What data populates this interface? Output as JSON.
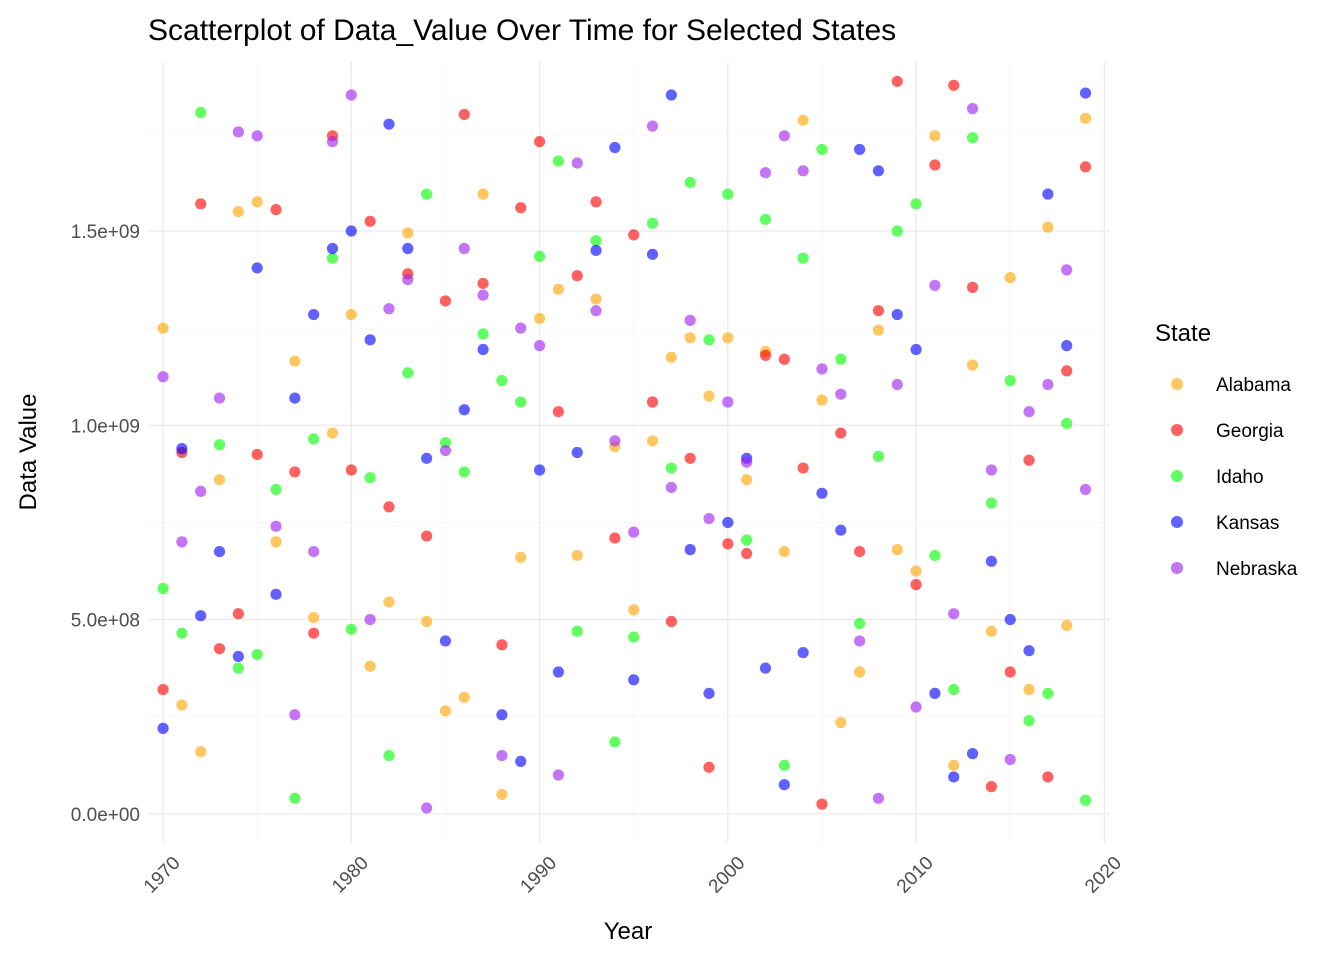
{
  "chart_data": {
    "type": "scatter",
    "title": "Scatterplot of Data_Value Over Time for Selected States",
    "xlabel": "Year",
    "ylabel": "Data Value",
    "xlim": [
      1969.2,
      2020.3
    ],
    "ylim": [
      -75000000,
      1935000000
    ],
    "x_ticks": [
      1970,
      1980,
      1990,
      2000,
      2010,
      2020
    ],
    "x_tick_labels": [
      "1970",
      "1980",
      "1990",
      "2000",
      "2010",
      "2020"
    ],
    "y_ticks": [
      0,
      500000000,
      1000000000,
      1500000000
    ],
    "y_tick_labels": [
      "0.0e+00",
      "5.0e+08",
      "1.0e+09",
      "1.5e+09"
    ],
    "grid": true,
    "legend_title": "State",
    "legend_position": "right",
    "series": [
      {
        "name": "Alabama",
        "color": "#FFA500",
        "points": [
          [
            1970,
            1250000000
          ],
          [
            1971,
            280000000
          ],
          [
            1972,
            160000000
          ],
          [
            1973,
            860000000
          ],
          [
            1974,
            1550000000
          ],
          [
            1975,
            1575000000
          ],
          [
            1976,
            700000000
          ],
          [
            1977,
            1165000000
          ],
          [
            1978,
            505000000
          ],
          [
            1979,
            980000000
          ],
          [
            1980,
            1285000000
          ],
          [
            1981,
            380000000
          ],
          [
            1982,
            545000000
          ],
          [
            1983,
            1495000000
          ],
          [
            1984,
            495000000
          ],
          [
            1985,
            265000000
          ],
          [
            1986,
            300000000
          ],
          [
            1987,
            1595000000
          ],
          [
            1988,
            50000000
          ],
          [
            1989,
            660000000
          ],
          [
            1990,
            1275000000
          ],
          [
            1991,
            1350000000
          ],
          [
            1992,
            665000000
          ],
          [
            1993,
            1325000000
          ],
          [
            1994,
            945000000
          ],
          [
            1995,
            525000000
          ],
          [
            1996,
            960000000
          ],
          [
            1997,
            1175000000
          ],
          [
            1998,
            1225000000
          ],
          [
            1999,
            1075000000
          ],
          [
            2000,
            1225000000
          ],
          [
            2001,
            860000000
          ],
          [
            2002,
            1190000000
          ],
          [
            2003,
            675000000
          ],
          [
            2004,
            1785000000
          ],
          [
            2005,
            1065000000
          ],
          [
            2006,
            235000000
          ],
          [
            2007,
            365000000
          ],
          [
            2008,
            1245000000
          ],
          [
            2009,
            680000000
          ],
          [
            2010,
            625000000
          ],
          [
            2011,
            1745000000
          ],
          [
            2012,
            125000000
          ],
          [
            2013,
            1155000000
          ],
          [
            2014,
            470000000
          ],
          [
            2015,
            1380000000
          ],
          [
            2016,
            320000000
          ],
          [
            2017,
            1510000000
          ],
          [
            2018,
            485000000
          ],
          [
            2019,
            1790000000
          ]
        ]
      },
      {
        "name": "Georgia",
        "color": "#FF0000",
        "points": [
          [
            1970,
            320000000
          ],
          [
            1971,
            930000000
          ],
          [
            1972,
            1570000000
          ],
          [
            1973,
            425000000
          ],
          [
            1974,
            515000000
          ],
          [
            1975,
            925000000
          ],
          [
            1976,
            1555000000
          ],
          [
            1977,
            880000000
          ],
          [
            1978,
            465000000
          ],
          [
            1979,
            1745000000
          ],
          [
            1980,
            885000000
          ],
          [
            1981,
            1525000000
          ],
          [
            1982,
            790000000
          ],
          [
            1983,
            1390000000
          ],
          [
            1984,
            715000000
          ],
          [
            1985,
            1320000000
          ],
          [
            1986,
            1800000000
          ],
          [
            1987,
            1365000000
          ],
          [
            1988,
            435000000
          ],
          [
            1989,
            1560000000
          ],
          [
            1990,
            1730000000
          ],
          [
            1991,
            1035000000
          ],
          [
            1992,
            1385000000
          ],
          [
            1993,
            1575000000
          ],
          [
            1994,
            710000000
          ],
          [
            1995,
            1490000000
          ],
          [
            1996,
            1060000000
          ],
          [
            1997,
            495000000
          ],
          [
            1998,
            915000000
          ],
          [
            1999,
            120000000
          ],
          [
            2000,
            695000000
          ],
          [
            2001,
            670000000
          ],
          [
            2002,
            1180000000
          ],
          [
            2003,
            1170000000
          ],
          [
            2004,
            890000000
          ],
          [
            2005,
            25000000
          ],
          [
            2006,
            980000000
          ],
          [
            2007,
            675000000
          ],
          [
            2008,
            1295000000
          ],
          [
            2009,
            1885000000
          ],
          [
            2010,
            590000000
          ],
          [
            2011,
            1670000000
          ],
          [
            2012,
            1875000000
          ],
          [
            2013,
            1355000000
          ],
          [
            2014,
            70000000
          ],
          [
            2015,
            365000000
          ],
          [
            2016,
            910000000
          ],
          [
            2017,
            95000000
          ],
          [
            2018,
            1140000000
          ],
          [
            2019,
            1665000000
          ]
        ]
      },
      {
        "name": "Idaho",
        "color": "#00FF00",
        "points": [
          [
            1970,
            580000000
          ],
          [
            1971,
            465000000
          ],
          [
            1972,
            1805000000
          ],
          [
            1973,
            950000000
          ],
          [
            1974,
            375000000
          ],
          [
            1975,
            410000000
          ],
          [
            1976,
            835000000
          ],
          [
            1977,
            40000000
          ],
          [
            1978,
            965000000
          ],
          [
            1979,
            1430000000
          ],
          [
            1980,
            475000000
          ],
          [
            1981,
            865000000
          ],
          [
            1982,
            150000000
          ],
          [
            1983,
            1135000000
          ],
          [
            1984,
            1595000000
          ],
          [
            1985,
            955000000
          ],
          [
            1986,
            880000000
          ],
          [
            1987,
            1235000000
          ],
          [
            1988,
            1115000000
          ],
          [
            1989,
            1060000000
          ],
          [
            1990,
            1435000000
          ],
          [
            1991,
            1680000000
          ],
          [
            1992,
            470000000
          ],
          [
            1993,
            1475000000
          ],
          [
            1994,
            185000000
          ],
          [
            1995,
            455000000
          ],
          [
            1996,
            1520000000
          ],
          [
            1997,
            890000000
          ],
          [
            1998,
            1625000000
          ],
          [
            1999,
            1220000000
          ],
          [
            2000,
            1595000000
          ],
          [
            2001,
            705000000
          ],
          [
            2002,
            1530000000
          ],
          [
            2003,
            125000000
          ],
          [
            2004,
            1430000000
          ],
          [
            2005,
            1710000000
          ],
          [
            2006,
            1170000000
          ],
          [
            2007,
            490000000
          ],
          [
            2008,
            920000000
          ],
          [
            2009,
            1500000000
          ],
          [
            2010,
            1570000000
          ],
          [
            2011,
            665000000
          ],
          [
            2012,
            320000000
          ],
          [
            2013,
            1740000000
          ],
          [
            2014,
            800000000
          ],
          [
            2015,
            1115000000
          ],
          [
            2016,
            240000000
          ],
          [
            2017,
            310000000
          ],
          [
            2018,
            1005000000
          ],
          [
            2019,
            35000000
          ]
        ]
      },
      {
        "name": "Kansas",
        "color": "#0000FF",
        "points": [
          [
            1970,
            220000000
          ],
          [
            1971,
            940000000
          ],
          [
            1972,
            510000000
          ],
          [
            1973,
            675000000
          ],
          [
            1974,
            405000000
          ],
          [
            1975,
            1405000000
          ],
          [
            1976,
            565000000
          ],
          [
            1977,
            1070000000
          ],
          [
            1978,
            1285000000
          ],
          [
            1979,
            1455000000
          ],
          [
            1980,
            1500000000
          ],
          [
            1981,
            1220000000
          ],
          [
            1982,
            1775000000
          ],
          [
            1983,
            1455000000
          ],
          [
            1984,
            915000000
          ],
          [
            1985,
            445000000
          ],
          [
            1986,
            1040000000
          ],
          [
            1987,
            1195000000
          ],
          [
            1988,
            255000000
          ],
          [
            1989,
            135000000
          ],
          [
            1990,
            885000000
          ],
          [
            1991,
            365000000
          ],
          [
            1992,
            930000000
          ],
          [
            1993,
            1450000000
          ],
          [
            1994,
            1715000000
          ],
          [
            1995,
            345000000
          ],
          [
            1996,
            1440000000
          ],
          [
            1997,
            1850000000
          ],
          [
            1998,
            680000000
          ],
          [
            1999,
            310000000
          ],
          [
            2000,
            750000000
          ],
          [
            2001,
            915000000
          ],
          [
            2002,
            375000000
          ],
          [
            2003,
            75000000
          ],
          [
            2004,
            415000000
          ],
          [
            2005,
            825000000
          ],
          [
            2006,
            730000000
          ],
          [
            2007,
            1710000000
          ],
          [
            2008,
            1655000000
          ],
          [
            2009,
            1285000000
          ],
          [
            2010,
            1195000000
          ],
          [
            2011,
            310000000
          ],
          [
            2012,
            95000000
          ],
          [
            2013,
            155000000
          ],
          [
            2014,
            650000000
          ],
          [
            2015,
            500000000
          ],
          [
            2016,
            420000000
          ],
          [
            2017,
            1595000000
          ],
          [
            2018,
            1205000000
          ],
          [
            2019,
            1855000000
          ]
        ]
      },
      {
        "name": "Nebraska",
        "color": "#A020F0",
        "points": [
          [
            1970,
            1125000000
          ],
          [
            1971,
            700000000
          ],
          [
            1972,
            830000000
          ],
          [
            1973,
            1070000000
          ],
          [
            1974,
            1755000000
          ],
          [
            1975,
            1745000000
          ],
          [
            1976,
            740000000
          ],
          [
            1977,
            255000000
          ],
          [
            1978,
            675000000
          ],
          [
            1979,
            1730000000
          ],
          [
            1980,
            1850000000
          ],
          [
            1981,
            500000000
          ],
          [
            1982,
            1300000000
          ],
          [
            1983,
            1375000000
          ],
          [
            1984,
            15000000
          ],
          [
            1985,
            935000000
          ],
          [
            1986,
            1455000000
          ],
          [
            1987,
            1335000000
          ],
          [
            1988,
            150000000
          ],
          [
            1989,
            1250000000
          ],
          [
            1990,
            1205000000
          ],
          [
            1991,
            100000000
          ],
          [
            1992,
            1675000000
          ],
          [
            1993,
            1295000000
          ],
          [
            1994,
            960000000
          ],
          [
            1995,
            725000000
          ],
          [
            1996,
            1770000000
          ],
          [
            1997,
            840000000
          ],
          [
            1998,
            1270000000
          ],
          [
            1999,
            760000000
          ],
          [
            2000,
            1060000000
          ],
          [
            2001,
            905000000
          ],
          [
            2002,
            1650000000
          ],
          [
            2003,
            1745000000
          ],
          [
            2004,
            1655000000
          ],
          [
            2005,
            1145000000
          ],
          [
            2006,
            1080000000
          ],
          [
            2007,
            445000000
          ],
          [
            2008,
            40000000
          ],
          [
            2009,
            1105000000
          ],
          [
            2010,
            275000000
          ],
          [
            2011,
            1360000000
          ],
          [
            2012,
            515000000
          ],
          [
            2013,
            1815000000
          ],
          [
            2014,
            885000000
          ],
          [
            2015,
            140000000
          ],
          [
            2016,
            1035000000
          ],
          [
            2017,
            1105000000
          ],
          [
            2018,
            1400000000
          ],
          [
            2019,
            835000000
          ]
        ]
      }
    ]
  }
}
